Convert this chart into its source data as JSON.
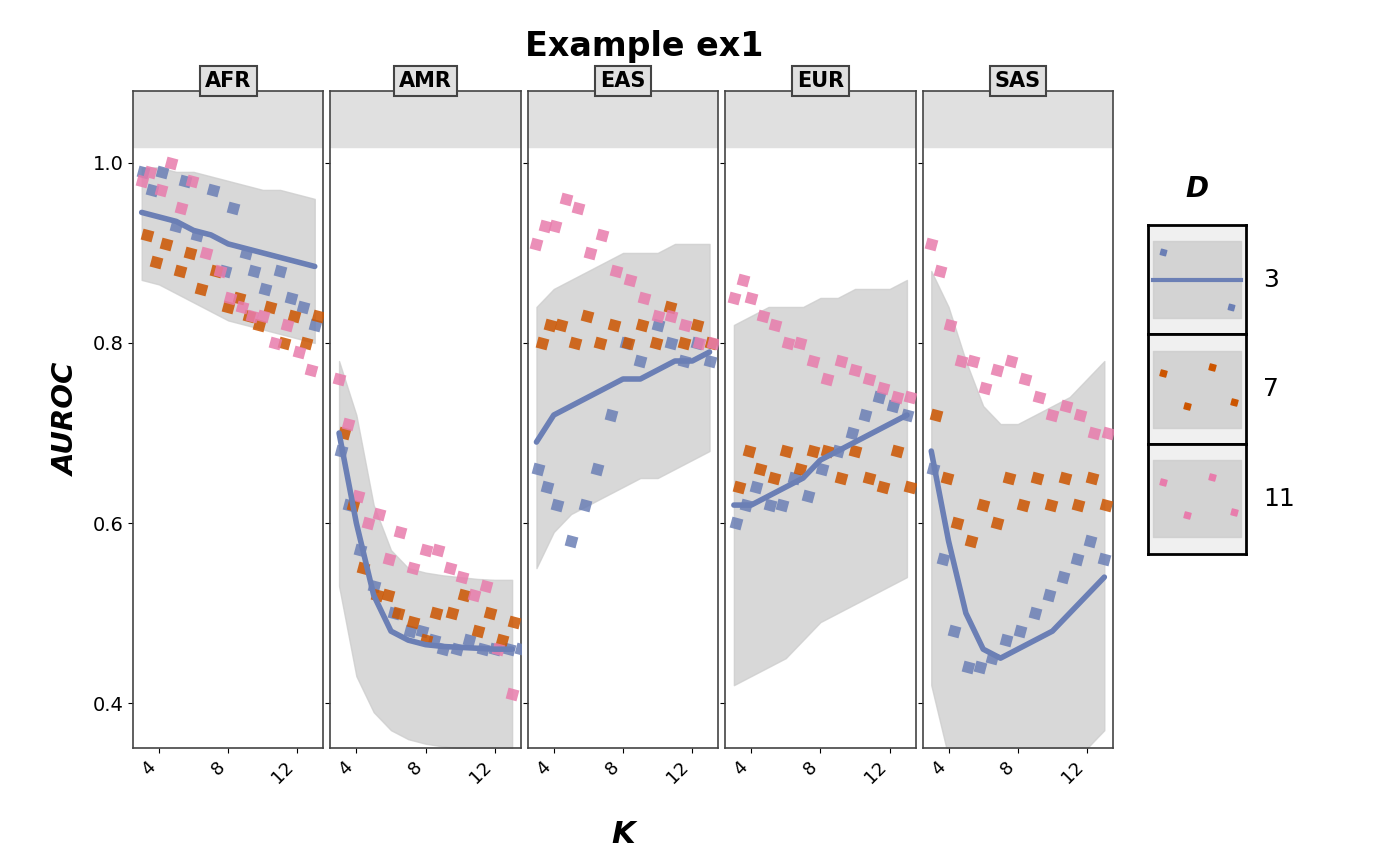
{
  "title": "Example ex1",
  "panels": [
    "AFR",
    "AMR",
    "EAS",
    "EUR",
    "SAS"
  ],
  "xlabel": "K",
  "ylabel": "AUROC",
  "legend_title": "D",
  "legend_values": [
    "3",
    "7",
    "11"
  ],
  "colors": {
    "3": "#6B7FB5",
    "7": "#CC5500",
    "11": "#E87CAC"
  },
  "ribbon_color": "#CCCCCC",
  "ylim": [
    0.35,
    1.08
  ],
  "yticks": [
    0.4,
    0.6,
    0.8,
    1.0
  ],
  "k_values": [
    3,
    4,
    5,
    6,
    7,
    8,
    9,
    10,
    11,
    12,
    13
  ],
  "xticks": [
    4,
    8,
    12
  ],
  "panel_bg": "#FFFFFF",
  "AFR": {
    "D3_mean": [
      0.945,
      0.94,
      0.935,
      0.925,
      0.92,
      0.91,
      0.905,
      0.9,
      0.895,
      0.89,
      0.885
    ],
    "D3_lo": [
      0.87,
      0.865,
      0.855,
      0.845,
      0.835,
      0.825,
      0.82,
      0.815,
      0.81,
      0.805,
      0.8
    ],
    "D3_hi": [
      0.995,
      0.995,
      0.99,
      0.99,
      0.985,
      0.98,
      0.975,
      0.97,
      0.97,
      0.965,
      0.96
    ],
    "D3_sx": [
      3.1,
      3.6,
      4.2,
      5.0,
      5.5,
      6.2,
      7.1,
      7.8,
      8.3,
      9.0,
      9.5,
      10.1,
      11.0,
      11.6,
      12.3,
      13.0
    ],
    "D3_sy": [
      0.99,
      0.97,
      0.99,
      0.93,
      0.98,
      0.92,
      0.97,
      0.88,
      0.95,
      0.9,
      0.88,
      0.86,
      0.88,
      0.85,
      0.84,
      0.82
    ],
    "D7_sx": [
      3.3,
      3.8,
      4.4,
      5.2,
      5.8,
      6.4,
      7.3,
      8.0,
      8.6,
      9.2,
      9.8,
      10.4,
      11.2,
      11.8,
      12.5,
      13.2
    ],
    "D7_sy": [
      0.92,
      0.89,
      0.91,
      0.88,
      0.9,
      0.86,
      0.88,
      0.84,
      0.85,
      0.83,
      0.82,
      0.84,
      0.8,
      0.83,
      0.8,
      0.83
    ],
    "D11_sx": [
      3.0,
      3.5,
      4.1,
      4.7,
      5.3,
      5.9,
      6.7,
      7.5,
      8.1,
      8.8,
      9.4,
      10.0,
      10.7,
      11.4,
      12.1,
      12.8
    ],
    "D11_sy": [
      0.98,
      0.99,
      0.97,
      1.0,
      0.95,
      0.98,
      0.9,
      0.88,
      0.85,
      0.84,
      0.83,
      0.83,
      0.8,
      0.82,
      0.79,
      0.77
    ]
  },
  "AMR": {
    "D3_mean": [
      0.7,
      0.6,
      0.52,
      0.48,
      0.47,
      0.465,
      0.463,
      0.462,
      0.461,
      0.46,
      0.46
    ],
    "D3_lo": [
      0.53,
      0.43,
      0.39,
      0.37,
      0.36,
      0.355,
      0.352,
      0.35,
      0.348,
      0.347,
      0.346
    ],
    "D3_hi": [
      0.78,
      0.72,
      0.62,
      0.57,
      0.55,
      0.545,
      0.542,
      0.54,
      0.538,
      0.537,
      0.537
    ],
    "D3_sx": [
      3.1,
      3.6,
      4.2,
      5.0,
      6.2,
      7.1,
      7.8,
      8.5,
      9.0,
      9.8,
      10.5,
      11.3,
      12.0,
      12.8,
      13.5
    ],
    "D3_sy": [
      0.68,
      0.62,
      0.57,
      0.53,
      0.5,
      0.48,
      0.48,
      0.47,
      0.46,
      0.46,
      0.47,
      0.46,
      0.46,
      0.46,
      0.46
    ],
    "D7_sx": [
      3.3,
      3.8,
      4.4,
      5.2,
      5.8,
      6.4,
      7.3,
      8.0,
      8.6,
      9.5,
      10.2,
      11.0,
      11.7,
      12.4,
      13.1
    ],
    "D7_sy": [
      0.7,
      0.62,
      0.55,
      0.52,
      0.52,
      0.5,
      0.49,
      0.47,
      0.5,
      0.5,
      0.52,
      0.48,
      0.5,
      0.47,
      0.49
    ],
    "D11_sx": [
      3.0,
      3.5,
      4.1,
      4.7,
      5.3,
      5.9,
      6.5,
      7.3,
      8.0,
      8.7,
      9.4,
      10.1,
      10.8,
      11.5,
      12.2,
      13.0
    ],
    "D11_sy": [
      0.76,
      0.71,
      0.63,
      0.6,
      0.61,
      0.56,
      0.59,
      0.55,
      0.57,
      0.57,
      0.55,
      0.54,
      0.52,
      0.53,
      0.46,
      0.41
    ]
  },
  "EAS": {
    "D3_mean": [
      0.69,
      0.72,
      0.73,
      0.74,
      0.75,
      0.76,
      0.76,
      0.77,
      0.78,
      0.78,
      0.79
    ],
    "D3_lo": [
      0.55,
      0.59,
      0.61,
      0.62,
      0.63,
      0.64,
      0.65,
      0.65,
      0.66,
      0.67,
      0.68
    ],
    "D3_hi": [
      0.84,
      0.86,
      0.87,
      0.88,
      0.89,
      0.9,
      0.9,
      0.9,
      0.91,
      0.91,
      0.91
    ],
    "D3_sx": [
      3.1,
      3.6,
      4.2,
      5.0,
      5.8,
      6.5,
      7.3,
      8.2,
      9.0,
      10.0,
      10.8,
      11.5,
      12.3,
      13.0
    ],
    "D3_sy": [
      0.66,
      0.64,
      0.62,
      0.58,
      0.62,
      0.66,
      0.72,
      0.8,
      0.78,
      0.82,
      0.8,
      0.78,
      0.8,
      0.78
    ],
    "D7_sx": [
      3.3,
      3.8,
      4.4,
      5.2,
      5.9,
      6.7,
      7.5,
      8.3,
      9.1,
      9.9,
      10.7,
      11.5,
      12.3,
      13.1
    ],
    "D7_sy": [
      0.8,
      0.82,
      0.82,
      0.8,
      0.83,
      0.8,
      0.82,
      0.8,
      0.82,
      0.8,
      0.84,
      0.8,
      0.82,
      0.8
    ],
    "D11_sx": [
      3.0,
      3.5,
      4.1,
      4.7,
      5.4,
      6.1,
      6.8,
      7.6,
      8.4,
      9.2,
      10.0,
      10.8,
      11.6,
      12.4,
      13.2
    ],
    "D11_sy": [
      0.91,
      0.93,
      0.93,
      0.96,
      0.95,
      0.9,
      0.92,
      0.88,
      0.87,
      0.85,
      0.83,
      0.83,
      0.82,
      0.8,
      0.8
    ]
  },
  "EUR": {
    "D3_mean": [
      0.62,
      0.62,
      0.63,
      0.64,
      0.65,
      0.67,
      0.68,
      0.69,
      0.7,
      0.71,
      0.72
    ],
    "D3_lo": [
      0.42,
      0.43,
      0.44,
      0.45,
      0.47,
      0.49,
      0.5,
      0.51,
      0.52,
      0.53,
      0.54
    ],
    "D3_hi": [
      0.82,
      0.83,
      0.84,
      0.84,
      0.84,
      0.85,
      0.85,
      0.86,
      0.86,
      0.86,
      0.87
    ],
    "D3_sx": [
      3.1,
      3.7,
      4.3,
      5.1,
      5.8,
      6.5,
      7.3,
      8.1,
      9.0,
      9.8,
      10.6,
      11.4,
      12.2,
      13.0
    ],
    "D3_sy": [
      0.6,
      0.62,
      0.64,
      0.62,
      0.62,
      0.65,
      0.63,
      0.66,
      0.68,
      0.7,
      0.72,
      0.74,
      0.73,
      0.72
    ],
    "D7_sx": [
      3.3,
      3.9,
      4.5,
      5.3,
      6.0,
      6.8,
      7.6,
      8.4,
      9.2,
      10.0,
      10.8,
      11.6,
      12.4,
      13.2
    ],
    "D7_sy": [
      0.64,
      0.68,
      0.66,
      0.65,
      0.68,
      0.66,
      0.68,
      0.68,
      0.65,
      0.68,
      0.65,
      0.64,
      0.68,
      0.64
    ],
    "D11_sx": [
      3.0,
      3.5,
      4.0,
      4.7,
      5.4,
      6.1,
      6.8,
      7.6,
      8.4,
      9.2,
      10.0,
      10.8,
      11.6,
      12.4,
      13.2
    ],
    "D11_sy": [
      0.85,
      0.87,
      0.85,
      0.83,
      0.82,
      0.8,
      0.8,
      0.78,
      0.76,
      0.78,
      0.77,
      0.76,
      0.75,
      0.74,
      0.74
    ]
  },
  "SAS": {
    "D3_mean": [
      0.68,
      0.58,
      0.5,
      0.46,
      0.45,
      0.46,
      0.47,
      0.48,
      0.5,
      0.52,
      0.54
    ],
    "D3_lo": [
      0.42,
      0.34,
      0.29,
      0.27,
      0.27,
      0.28,
      0.29,
      0.31,
      0.33,
      0.35,
      0.37
    ],
    "D3_hi": [
      0.88,
      0.84,
      0.78,
      0.73,
      0.71,
      0.71,
      0.72,
      0.73,
      0.74,
      0.76,
      0.78
    ],
    "D3_sx": [
      3.1,
      3.7,
      4.3,
      5.1,
      5.8,
      6.5,
      7.3,
      8.1,
      9.0,
      9.8,
      10.6,
      11.4,
      12.2,
      13.0
    ],
    "D3_sy": [
      0.66,
      0.56,
      0.48,
      0.44,
      0.44,
      0.45,
      0.47,
      0.48,
      0.5,
      0.52,
      0.54,
      0.56,
      0.58,
      0.56
    ],
    "D7_sx": [
      3.3,
      3.9,
      4.5,
      5.3,
      6.0,
      6.8,
      7.5,
      8.3,
      9.1,
      9.9,
      10.7,
      11.5,
      12.3,
      13.1
    ],
    "D7_sy": [
      0.72,
      0.65,
      0.6,
      0.58,
      0.62,
      0.6,
      0.65,
      0.62,
      0.65,
      0.62,
      0.65,
      0.62,
      0.65,
      0.62
    ],
    "D11_sx": [
      3.0,
      3.5,
      4.1,
      4.7,
      5.4,
      6.1,
      6.8,
      7.6,
      8.4,
      9.2,
      10.0,
      10.8,
      11.6,
      12.4,
      13.2
    ],
    "D11_sy": [
      0.91,
      0.88,
      0.82,
      0.78,
      0.78,
      0.75,
      0.77,
      0.78,
      0.76,
      0.74,
      0.72,
      0.73,
      0.72,
      0.7,
      0.7
    ]
  }
}
